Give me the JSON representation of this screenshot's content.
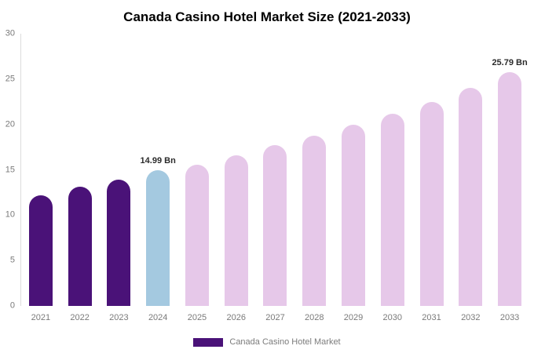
{
  "chart_data": {
    "type": "bar",
    "title": "Canada Casino Hotel Market Size (2021-2033)",
    "categories": [
      "2021",
      "2022",
      "2023",
      "2024",
      "2025",
      "2026",
      "2027",
      "2028",
      "2029",
      "2030",
      "2031",
      "2032",
      "2033"
    ],
    "values": [
      12.2,
      13.1,
      13.9,
      14.99,
      15.6,
      16.6,
      17.7,
      18.8,
      20.0,
      21.2,
      22.5,
      24.0,
      25.79
    ],
    "bar_colors": [
      "#4a1278",
      "#4a1278",
      "#4a1278",
      "#a4c9e0",
      "#e6c8e9",
      "#e6c8e9",
      "#e6c8e9",
      "#e6c8e9",
      "#e6c8e9",
      "#e6c8e9",
      "#e6c8e9",
      "#e6c8e9",
      "#e6c8e9"
    ],
    "ylim": [
      0,
      30
    ],
    "yticks": [
      0,
      5,
      10,
      15,
      20,
      25,
      30
    ],
    "grid": false,
    "legend_position": "bottom",
    "annotations": [
      {
        "category": "2024",
        "text": "14.99 Bn"
      },
      {
        "category": "2033",
        "text": "25.79 Bn"
      }
    ],
    "legend": {
      "label": "Canada Casino Hotel Market",
      "color": "#4a1278"
    },
    "colors": {
      "dark_purple": "#4a1278",
      "highlight_blue": "#a4c9e0",
      "forecast_pink": "#e6c8e9"
    }
  }
}
